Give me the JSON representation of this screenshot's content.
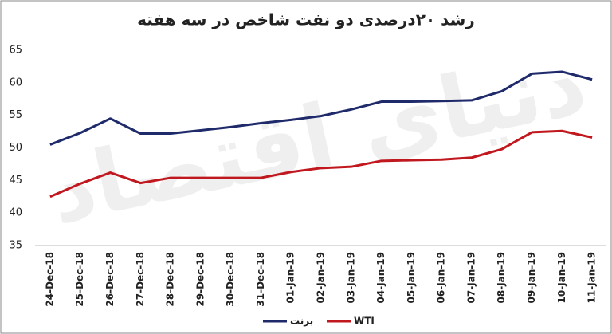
{
  "chart_data": {
    "type": "line",
    "title": "رشد ۲۰درصدی دو نفت شاخص در سه هفته",
    "watermark": "دنیای اقتصاد",
    "categories": [
      "24-Dec-18",
      "25-Dec-18",
      "26-Dec-18",
      "27-Dec-18",
      "28-Dec-18",
      "29-Dec-18",
      "30-Dec-18",
      "31-Dec-18",
      "01-Jan-19",
      "02-Jan-19",
      "03-Jan-19",
      "04-Jan-19",
      "05-Jan-19",
      "06-Jan-19",
      "07-Jan-19",
      "08-Jan-19",
      "09-Jan-19",
      "10-Jan-19",
      "11-Jan-19"
    ],
    "series": [
      {
        "name": "برنت",
        "color": "#1f2a6b",
        "values": [
          50.5,
          52.3,
          54.5,
          52.2,
          52.2,
          52.7,
          53.2,
          53.8,
          54.3,
          54.9,
          55.9,
          57.1,
          57.1,
          57.2,
          57.3,
          58.7,
          61.4,
          61.7,
          60.5
        ]
      },
      {
        "name": "WTI",
        "color": "#c0181e",
        "values": [
          42.5,
          44.5,
          46.2,
          44.6,
          45.4,
          45.4,
          45.4,
          45.4,
          46.3,
          46.9,
          47.1,
          48.0,
          48.1,
          48.2,
          48.5,
          49.8,
          52.4,
          52.6,
          51.6
        ]
      }
    ],
    "ylim": [
      35,
      65
    ],
    "yticks": [
      35,
      40,
      45,
      50,
      55,
      60,
      65
    ],
    "grid": false,
    "legend": "bottom"
  }
}
